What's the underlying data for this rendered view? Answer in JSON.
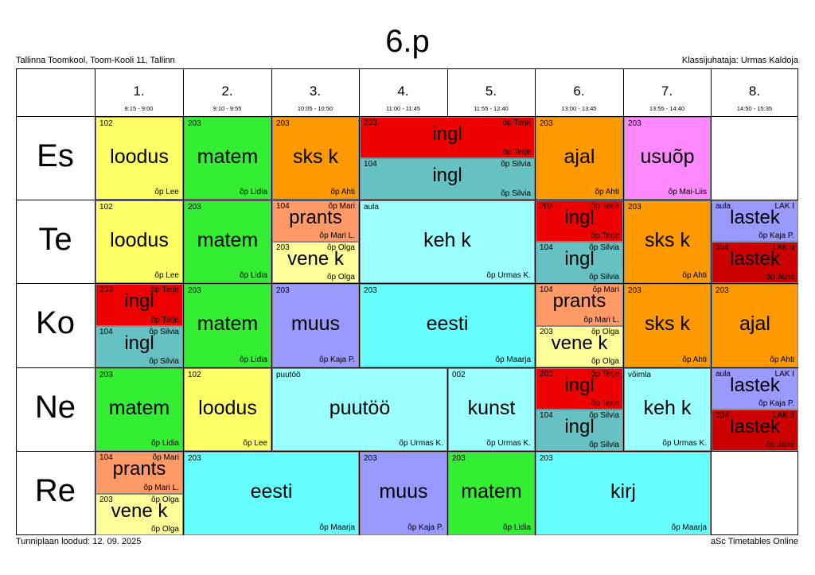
{
  "header": {
    "title": "6.p",
    "school": "Tallinna Toomkool, Toom-Kooli 11, Tallinn",
    "class_teacher": "Klassijuhataja: Urmas Kaldoja"
  },
  "footer": {
    "created": "Tunniplaan loodud: 12. 09. 2025",
    "brand": "aSc Timetables Online"
  },
  "periods": [
    {
      "num": "1.",
      "time": "8:15 - 9:00"
    },
    {
      "num": "2.",
      "time": "9:10 - 9:55"
    },
    {
      "num": "3.",
      "time": "10:05 - 10:50"
    },
    {
      "num": "4.",
      "time": "11:00 - 11:45"
    },
    {
      "num": "5.",
      "time": "11:55 - 12:40"
    },
    {
      "num": "6.",
      "time": "13:00 - 13:45"
    },
    {
      "num": "7.",
      "time": "13:55 - 14:40"
    },
    {
      "num": "8.",
      "time": "14:50 - 15:35"
    }
  ],
  "days": [
    "Es",
    "Te",
    "Ko",
    "Ne",
    "Re"
  ],
  "colors": {
    "loodus": "#ffff66",
    "matem": "#33ee33",
    "sks": "#ff9900",
    "ingl_red": "#ee0000",
    "ingl_teal": "#66c2c2",
    "ajal": "#ff9900",
    "usuop": "#ff88ff",
    "prants": "#ff9966",
    "vene": "#ffff99",
    "kehk": "#99ffff",
    "lastek_blue": "#9999ff",
    "lastek_red": "#cc0000",
    "muus": "#9999ff",
    "eesti": "#66ffff",
    "puutoo": "#99ffff",
    "kunst": "#99ffff",
    "kirj": "#66ffff"
  },
  "lessons": [
    {
      "id": "es-1",
      "subject": "loodus",
      "room": "102",
      "teacher": "õp Lee"
    },
    {
      "id": "es-2",
      "subject": "matem",
      "room": "203",
      "teacher": "õp Lidia"
    },
    {
      "id": "es-3",
      "subject": "sks k",
      "room": "203",
      "teacher": "õp Ahti"
    },
    {
      "id": "es-4a",
      "subject": "ingl",
      "room": "203",
      "teacher": "õp Terje",
      "group": "õp Terje"
    },
    {
      "id": "es-4b",
      "subject": "ingl",
      "room": "104",
      "teacher": "õp Silvia",
      "group": "õp Silvia"
    },
    {
      "id": "es-6",
      "subject": "ajal",
      "room": "203",
      "teacher": "õp Ahti"
    },
    {
      "id": "es-7",
      "subject": "usuõp",
      "room": "203",
      "teacher": "õp Mai-Liis"
    },
    {
      "id": "te-1",
      "subject": "loodus",
      "room": "102",
      "teacher": "õp Lee"
    },
    {
      "id": "te-2",
      "subject": "matem",
      "room": "203",
      "teacher": "õp Lidia"
    },
    {
      "id": "te-3a",
      "subject": "prants",
      "room": "104",
      "teacher": "õp Mari L.",
      "group": "õp Mari"
    },
    {
      "id": "te-3b",
      "subject": "vene k",
      "room": "203",
      "teacher": "õp Olga",
      "group": "õp Olga"
    },
    {
      "id": "te-4",
      "subject": "keh k",
      "room": "aula",
      "teacher": "õp Urmas K."
    },
    {
      "id": "te-6a",
      "subject": "ingl",
      "room": "203",
      "teacher": "õp Terje",
      "group": "õp Terje"
    },
    {
      "id": "te-6b",
      "subject": "ingl",
      "room": "104",
      "teacher": "õp Silvia",
      "group": "õp Silvia"
    },
    {
      "id": "te-7",
      "subject": "sks k",
      "room": "203",
      "teacher": "õp Ahti"
    },
    {
      "id": "te-8a",
      "subject": "lastek",
      "room": "aula",
      "teacher": "õp Kaja P.",
      "group": "LAK I"
    },
    {
      "id": "te-8b",
      "subject": "lastek",
      "room": "304",
      "teacher": "õp Jane",
      "group": "LAK II"
    },
    {
      "id": "ko-1a",
      "subject": "ingl",
      "room": "203",
      "teacher": "õp Terje",
      "group": "õp Terje"
    },
    {
      "id": "ko-1b",
      "subject": "ingl",
      "room": "104",
      "teacher": "õp Silvia",
      "group": "õp Silvia"
    },
    {
      "id": "ko-2",
      "subject": "matem",
      "room": "203",
      "teacher": "õp Lidia"
    },
    {
      "id": "ko-3",
      "subject": "muus",
      "room": "203",
      "teacher": "õp Kaja P."
    },
    {
      "id": "ko-4",
      "subject": "eesti",
      "room": "203",
      "teacher": "õp Maarja"
    },
    {
      "id": "ko-6a",
      "subject": "prants",
      "room": "104",
      "teacher": "õp Mari L.",
      "group": "õp Mari"
    },
    {
      "id": "ko-6b",
      "subject": "vene k",
      "room": "203",
      "teacher": "õp Olga",
      "group": "õp Olga"
    },
    {
      "id": "ko-7",
      "subject": "sks k",
      "room": "203",
      "teacher": "õp Ahti"
    },
    {
      "id": "ko-8",
      "subject": "ajal",
      "room": "203",
      "teacher": "õp Ahti"
    },
    {
      "id": "ne-1",
      "subject": "matem",
      "room": "203",
      "teacher": "õp Lidia"
    },
    {
      "id": "ne-2",
      "subject": "loodus",
      "room": "102",
      "teacher": "õp Lee"
    },
    {
      "id": "ne-3",
      "subject": "puutöö",
      "room": "puutöö",
      "teacher": "õp Urmas K."
    },
    {
      "id": "ne-5",
      "subject": "kunst",
      "room": "002",
      "teacher": "õp Urmas K."
    },
    {
      "id": "ne-6a",
      "subject": "ingl",
      "room": "203",
      "teacher": "õp Terje",
      "group": "õp Terje"
    },
    {
      "id": "ne-6b",
      "subject": "ingl",
      "room": "104",
      "teacher": "õp Silvia",
      "group": "õp Silvia"
    },
    {
      "id": "ne-7",
      "subject": "keh k",
      "room": "võimla",
      "teacher": "õp Urmas K."
    },
    {
      "id": "ne-8a",
      "subject": "lastek",
      "room": "aula",
      "teacher": "õp Kaja P.",
      "group": "LAK I"
    },
    {
      "id": "ne-8b",
      "subject": "lastek",
      "room": "304",
      "teacher": "õp Jane",
      "group": "LAK II"
    },
    {
      "id": "re-1a",
      "subject": "prants",
      "room": "104",
      "teacher": "õp Mari L.",
      "group": "õp Mari"
    },
    {
      "id": "re-1b",
      "subject": "vene k",
      "room": "203",
      "teacher": "õp Olga",
      "group": "õp Olga"
    },
    {
      "id": "re-2",
      "subject": "eesti",
      "room": "203",
      "teacher": "õp Maarja"
    },
    {
      "id": "re-4",
      "subject": "muus",
      "room": "203",
      "teacher": "õp Kaja P."
    },
    {
      "id": "re-5",
      "subject": "matem",
      "room": "203",
      "teacher": "õp Lidia"
    },
    {
      "id": "re-6",
      "subject": "kirj",
      "room": "203",
      "teacher": "õp Maarja"
    }
  ]
}
